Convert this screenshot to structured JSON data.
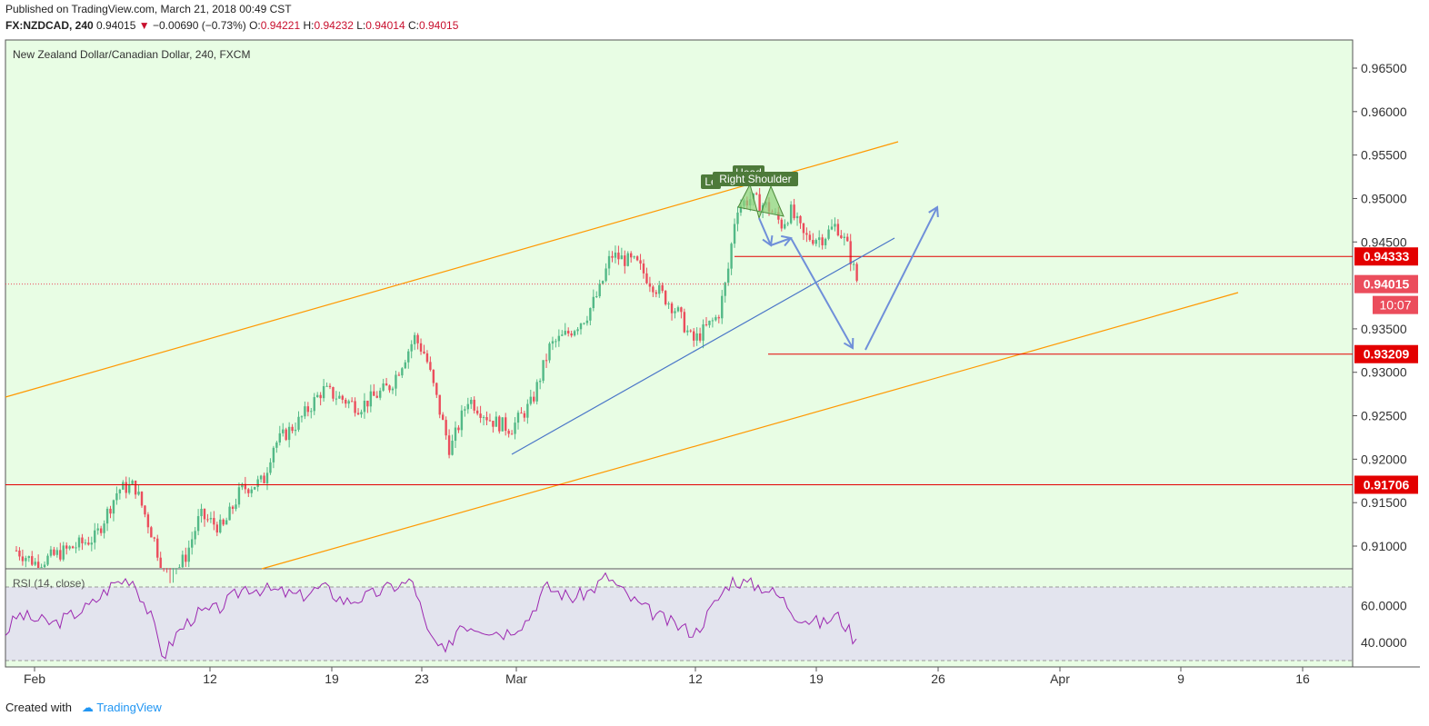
{
  "header": {
    "published": "Published on TradingView.com, March 21, 2018 00:49 CST",
    "symbol": "FX:NZDCAD, 240",
    "last": "0.94015",
    "change": "−0.00690 (−0.73%)",
    "o_label": "O:",
    "o": "0.94221",
    "h_label": "H:",
    "h": "0.94232",
    "l_label": "L:",
    "l": "0.94014",
    "c_label": "C:",
    "c": "0.94015"
  },
  "footer": {
    "created": "Created with",
    "brand": "TradingView"
  },
  "colors": {
    "bg": "#e8fde4",
    "up": "#53b987",
    "down": "#eb4d5c",
    "channel": "#ff9800",
    "trend": "#4a76c8",
    "level": "#e30000",
    "rsi": "#9c27b0",
    "arrow": "#6f8fd9"
  },
  "chart_data": {
    "type": "candlestick",
    "title": "New Zealand Dollar/Canadian Dollar, 240, FXCM",
    "y_ticks": [
      "0.96500",
      "0.96000",
      "0.95500",
      "0.95000",
      "0.94500",
      "0.93500",
      "0.93000",
      "0.92500",
      "0.92000",
      "0.91500",
      "0.91000"
    ],
    "x_ticks": [
      "Feb",
      "12",
      "19",
      "23",
      "Mar",
      "12",
      "19",
      "26",
      "Apr",
      "9",
      "16"
    ],
    "price_labels": [
      {
        "label": "0.94333",
        "value": 0.94333
      },
      {
        "label": "0.94015",
        "value": 0.94015
      },
      {
        "label": "0.93209",
        "value": 0.93209
      },
      {
        "label": "0.91706",
        "value": 0.91706
      }
    ],
    "countdown": "10:07",
    "key_closes": [
      {
        "date": "Feb 1",
        "close": 0.9095
      },
      {
        "date": "Feb 8",
        "close": 0.9175
      },
      {
        "date": "Feb 9",
        "close": 0.9085
      },
      {
        "date": "Feb 15",
        "close": 0.918
      },
      {
        "date": "Feb 20",
        "close": 0.928
      },
      {
        "date": "Feb 23",
        "close": 0.9345
      },
      {
        "date": "Feb 26",
        "close": 0.9215
      },
      {
        "date": "Mar 1",
        "close": 0.924
      },
      {
        "date": "Mar 7",
        "close": 0.938
      },
      {
        "date": "Mar 8",
        "close": 0.9435
      },
      {
        "date": "Mar 12",
        "close": 0.933
      },
      {
        "date": "Mar 14",
        "close": 0.95
      },
      {
        "date": "Mar 16",
        "close": 0.948
      },
      {
        "date": "Mar 19",
        "close": 0.946
      },
      {
        "date": "Mar 20",
        "close": 0.9401
      }
    ],
    "pattern_labels": [
      "Left Shoulder",
      "Head",
      "Right Shoulder"
    ],
    "pattern_left_visible": "Le",
    "rsi": {
      "label": "RSI (14, close)",
      "ticks": [
        "60.0000",
        "40.0000"
      ],
      "bands": [
        70,
        30
      ],
      "last": 38
    }
  }
}
